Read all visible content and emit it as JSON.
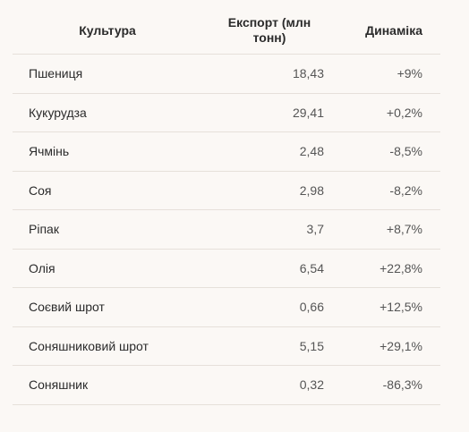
{
  "table": {
    "headers": {
      "crop": "Культура",
      "export": "Експорт (млн тонн)",
      "dynamics": "Динаміка"
    },
    "rows": [
      {
        "crop": "Пшениця",
        "export": "18,43",
        "dynamics": "+9%"
      },
      {
        "crop": "Кукурудза",
        "export": "29,41",
        "dynamics": "+0,2%"
      },
      {
        "crop": "Ячмінь",
        "export": "2,48",
        "dynamics": "-8,5%"
      },
      {
        "crop": "Соя",
        "export": "2,98",
        "dynamics": "-8,2%"
      },
      {
        "crop": "Ріпак",
        "export": "3,7",
        "dynamics": "+8,7%"
      },
      {
        "crop": "Олія",
        "export": "6,54",
        "dynamics": "+22,8%"
      },
      {
        "crop": "Соєвий шрот",
        "export": "0,66",
        "dynamics": "+12,5%"
      },
      {
        "crop": "Соняшниковий шрот",
        "export": "5,15",
        "dynamics": "+29,1%"
      },
      {
        "crop": "Соняшник",
        "export": "0,32",
        "dynamics": "-86,3%"
      }
    ]
  }
}
